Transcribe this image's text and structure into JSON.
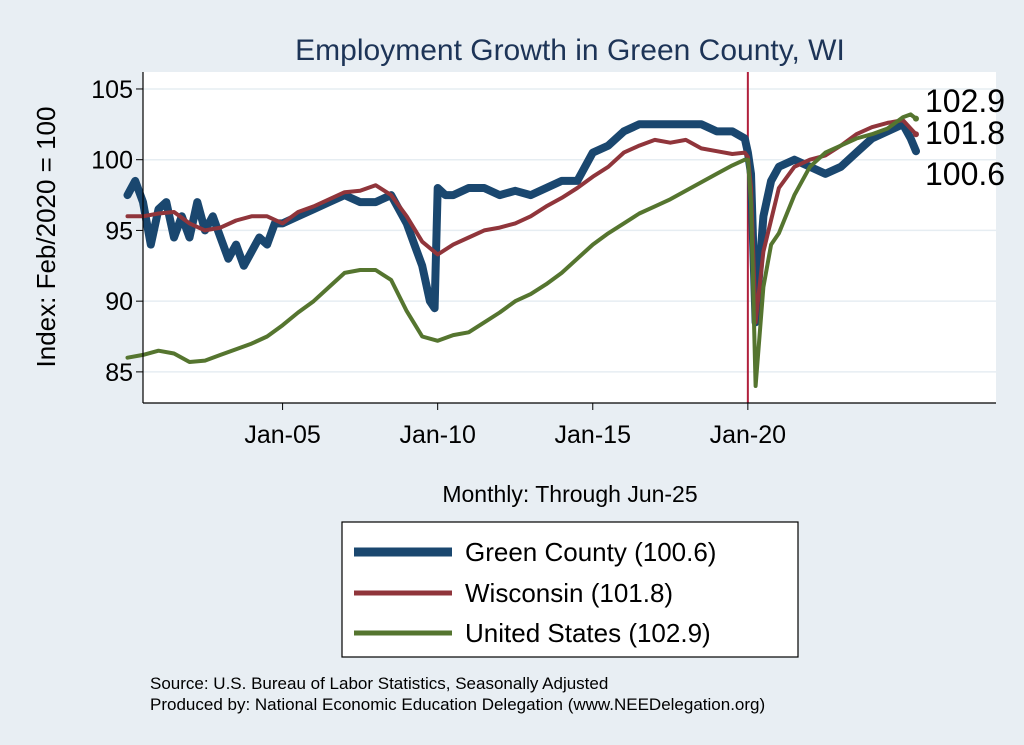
{
  "chart_data": {
    "type": "line",
    "title": "Employment Growth in Green  County, WI",
    "xlabel": "Monthly: Through Jun-25",
    "ylabel": "Index: Feb/2020 = 100",
    "x_ticks": [
      "Jan-05",
      "Jan-10",
      "Jan-15",
      "Jan-20"
    ],
    "x_tick_years": [
      2005,
      2010,
      2015,
      2020
    ],
    "xlim": [
      2000.5,
      2028.0
    ],
    "ylim": [
      82.8,
      106.2
    ],
    "y_ticks": [
      85,
      90,
      95,
      100,
      105
    ],
    "grid": true,
    "vertical_marker": {
      "x": 2020.0,
      "color": "#b0203c"
    },
    "legend_position": "bottom",
    "end_labels": [
      "102.9",
      "101.8",
      "100.6"
    ],
    "series": [
      {
        "name": "Green  County (100.6)",
        "color": "#1a476f",
        "width": 8,
        "x": [
          2000.0,
          2000.25,
          2000.5,
          2000.75,
          2001.0,
          2001.25,
          2001.5,
          2001.75,
          2002.0,
          2002.25,
          2002.5,
          2002.75,
          2003.0,
          2003.25,
          2003.5,
          2003.75,
          2004.0,
          2004.25,
          2004.5,
          2004.75,
          2005.0,
          2005.5,
          2006.0,
          2006.5,
          2007.0,
          2007.5,
          2008.0,
          2008.5,
          2009.0,
          2009.25,
          2009.5,
          2009.75,
          2009.9,
          2010.0,
          2010.25,
          2010.5,
          2011.0,
          2011.5,
          2012.0,
          2012.5,
          2013.0,
          2013.5,
          2014.0,
          2014.5,
          2015.0,
          2015.5,
          2016.0,
          2016.5,
          2017.0,
          2017.5,
          2018.0,
          2018.5,
          2019.0,
          2019.5,
          2019.9,
          2020.0,
          2020.1,
          2020.25,
          2020.5,
          2020.75,
          2021.0,
          2021.5,
          2022.0,
          2022.5,
          2023.0,
          2023.5,
          2024.0,
          2024.5,
          2025.0,
          2025.25,
          2025.42
        ],
        "y": [
          97.5,
          98.5,
          97.0,
          94.0,
          96.5,
          97.0,
          94.5,
          96.0,
          94.5,
          97.0,
          95.0,
          96.0,
          94.5,
          93.0,
          94.0,
          92.5,
          93.5,
          94.5,
          94.0,
          95.5,
          95.5,
          96.0,
          96.5,
          97.0,
          97.5,
          97.0,
          97.0,
          97.5,
          95.5,
          94.0,
          92.5,
          90.0,
          89.5,
          98.0,
          97.5,
          97.5,
          98.0,
          98.0,
          97.5,
          97.8,
          97.5,
          98.0,
          98.5,
          98.5,
          100.5,
          101.0,
          102.0,
          102.5,
          102.5,
          102.5,
          102.5,
          102.5,
          102.0,
          102.0,
          101.5,
          100.5,
          99.0,
          88.5,
          96.0,
          98.5,
          99.5,
          100.0,
          99.5,
          99.0,
          99.5,
          100.5,
          101.5,
          102.0,
          102.5,
          101.5,
          100.6
        ]
      },
      {
        "name": "Wisconsin (101.8)",
        "color": "#90353b",
        "width": 4,
        "x": [
          2000.0,
          2000.5,
          2001.0,
          2001.5,
          2002.0,
          2002.5,
          2003.0,
          2003.5,
          2004.0,
          2004.5,
          2005.0,
          2005.5,
          2006.0,
          2006.5,
          2007.0,
          2007.5,
          2008.0,
          2008.5,
          2009.0,
          2009.5,
          2010.0,
          2010.5,
          2011.0,
          2011.5,
          2012.0,
          2012.5,
          2013.0,
          2013.5,
          2014.0,
          2014.5,
          2015.0,
          2015.5,
          2016.0,
          2016.5,
          2017.0,
          2017.5,
          2018.0,
          2018.5,
          2019.0,
          2019.5,
          2019.9,
          2020.0,
          2020.1,
          2020.25,
          2020.5,
          2021.0,
          2021.5,
          2022.0,
          2022.5,
          2023.0,
          2023.5,
          2024.0,
          2024.5,
          2025.0,
          2025.25,
          2025.42
        ],
        "y": [
          96.0,
          96.0,
          96.2,
          96.3,
          95.5,
          95.0,
          95.2,
          95.7,
          96.0,
          96.0,
          95.5,
          96.3,
          96.7,
          97.2,
          97.7,
          97.8,
          98.2,
          97.5,
          96.0,
          94.2,
          93.3,
          94.0,
          94.5,
          95.0,
          95.2,
          95.5,
          96.0,
          96.7,
          97.3,
          98.0,
          98.8,
          99.5,
          100.5,
          101.0,
          101.4,
          101.2,
          101.4,
          100.8,
          100.6,
          100.4,
          100.5,
          100.2,
          98.0,
          88.5,
          93.5,
          98.0,
          99.5,
          100.0,
          100.3,
          101.0,
          101.8,
          102.3,
          102.6,
          102.8,
          102.2,
          101.8
        ]
      },
      {
        "name": "United States (102.9)",
        "color": "#55752f",
        "width": 4,
        "x": [
          2000.0,
          2000.5,
          2001.0,
          2001.5,
          2002.0,
          2002.5,
          2003.0,
          2003.5,
          2004.0,
          2004.5,
          2005.0,
          2005.5,
          2006.0,
          2006.5,
          2007.0,
          2007.5,
          2008.0,
          2008.5,
          2009.0,
          2009.5,
          2010.0,
          2010.5,
          2011.0,
          2011.5,
          2012.0,
          2012.5,
          2013.0,
          2013.5,
          2014.0,
          2014.5,
          2015.0,
          2015.5,
          2016.0,
          2016.5,
          2017.0,
          2017.5,
          2018.0,
          2018.5,
          2019.0,
          2019.5,
          2019.9,
          2020.0,
          2020.1,
          2020.25,
          2020.5,
          2020.75,
          2021.0,
          2021.5,
          2022.0,
          2022.5,
          2023.0,
          2023.5,
          2024.0,
          2024.5,
          2025.0,
          2025.25,
          2025.42
        ],
        "y": [
          86.0,
          86.2,
          86.5,
          86.3,
          85.7,
          85.8,
          86.2,
          86.6,
          87.0,
          87.5,
          88.3,
          89.2,
          90.0,
          91.0,
          92.0,
          92.2,
          92.2,
          91.5,
          89.3,
          87.5,
          87.2,
          87.6,
          87.8,
          88.5,
          89.2,
          90.0,
          90.5,
          91.2,
          92.0,
          93.0,
          94.0,
          94.8,
          95.5,
          96.2,
          96.7,
          97.2,
          97.8,
          98.4,
          99.0,
          99.6,
          100.0,
          100.0,
          97.0,
          84.0,
          91.0,
          94.0,
          94.8,
          97.5,
          99.5,
          100.5,
          101.0,
          101.5,
          101.8,
          102.2,
          103.0,
          103.2,
          102.9
        ]
      }
    ]
  },
  "source": {
    "line1": "Source: U.S. Bureau of Labor Statistics, Seasonally Adjusted",
    "line2": "Produced by: National Economic Education Delegation (www.NEEDelegation.org)"
  }
}
